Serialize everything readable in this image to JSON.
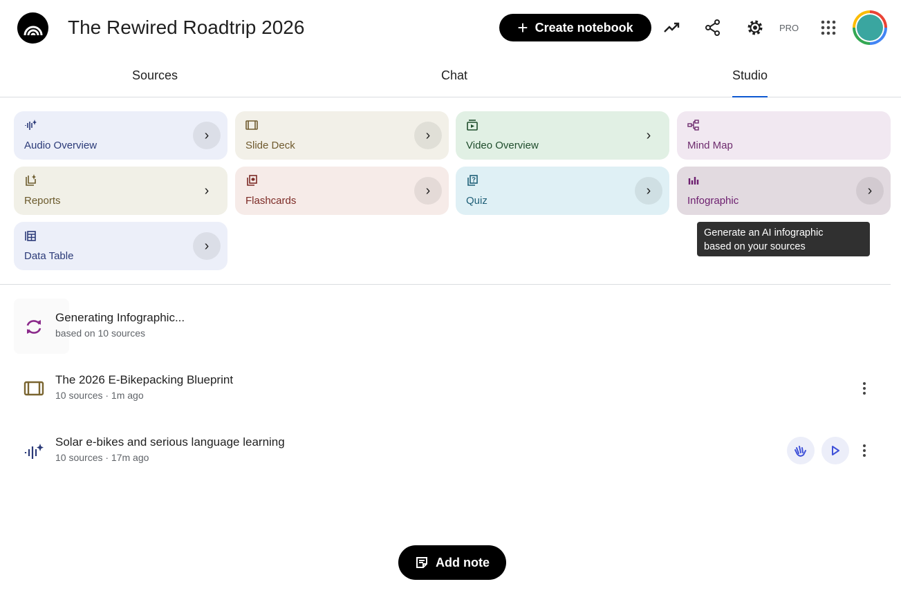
{
  "header": {
    "title": "The Rewired Roadtrip 2026",
    "create_label": "Create notebook",
    "pro_label": "PRO"
  },
  "tabs": [
    {
      "label": "Sources"
    },
    {
      "label": "Chat"
    },
    {
      "label": "Studio",
      "active": true
    }
  ],
  "studio_cards": [
    {
      "label": "Audio Overview",
      "icon": "audio-waveform-sparkle",
      "bg": "#eceff9",
      "fg": "#2b3a78",
      "arrow": "circle"
    },
    {
      "label": "Slide Deck",
      "icon": "slides",
      "bg": "#f2f0e8",
      "fg": "#6f5a2e",
      "arrow": "circle"
    },
    {
      "label": "Video Overview",
      "icon": "video",
      "bg": "#e1f0e4",
      "fg": "#1f4d2c",
      "arrow": "plain"
    },
    {
      "label": "Mind Map",
      "icon": "mind-map",
      "bg": "#f1e8f1",
      "fg": "#6e2c6e",
      "arrow": "none"
    },
    {
      "label": "Reports",
      "icon": "reports",
      "bg": "#f1f0e7",
      "fg": "#6b5a2c",
      "arrow": "plain"
    },
    {
      "label": "Flashcards",
      "icon": "flashcards",
      "bg": "#f6ebe8",
      "fg": "#7c2a25",
      "arrow": "circle"
    },
    {
      "label": "Quiz",
      "icon": "quiz",
      "bg": "#dff0f5",
      "fg": "#1f5f77",
      "arrow": "circle"
    },
    {
      "label": "Infographic",
      "icon": "infographic",
      "bg": "#e2dae0",
      "fg": "#6e2070",
      "arrow": "circle"
    },
    {
      "label": "Data Table",
      "icon": "table",
      "bg": "#eceff9",
      "fg": "#2b3a78",
      "arrow": "circle"
    }
  ],
  "tooltip": {
    "line1": "Generate an AI infographic",
    "line2": "based on your sources"
  },
  "outputs": [
    {
      "title": "Generating Infographic...",
      "subtitle": "based on 10 sources",
      "icon": "sync"
    },
    {
      "title": "The 2026 E-Bikepacking Blueprint",
      "subtitle": "10 sources · 1m ago",
      "icon": "slides"
    },
    {
      "title": "Solar e-bikes and serious language learning",
      "subtitle": "10 sources · 17m ago",
      "icon": "audio-waveform-sparkle"
    }
  ],
  "add_note_label": "Add note",
  "colors": {
    "accent": "#0b57d0"
  }
}
